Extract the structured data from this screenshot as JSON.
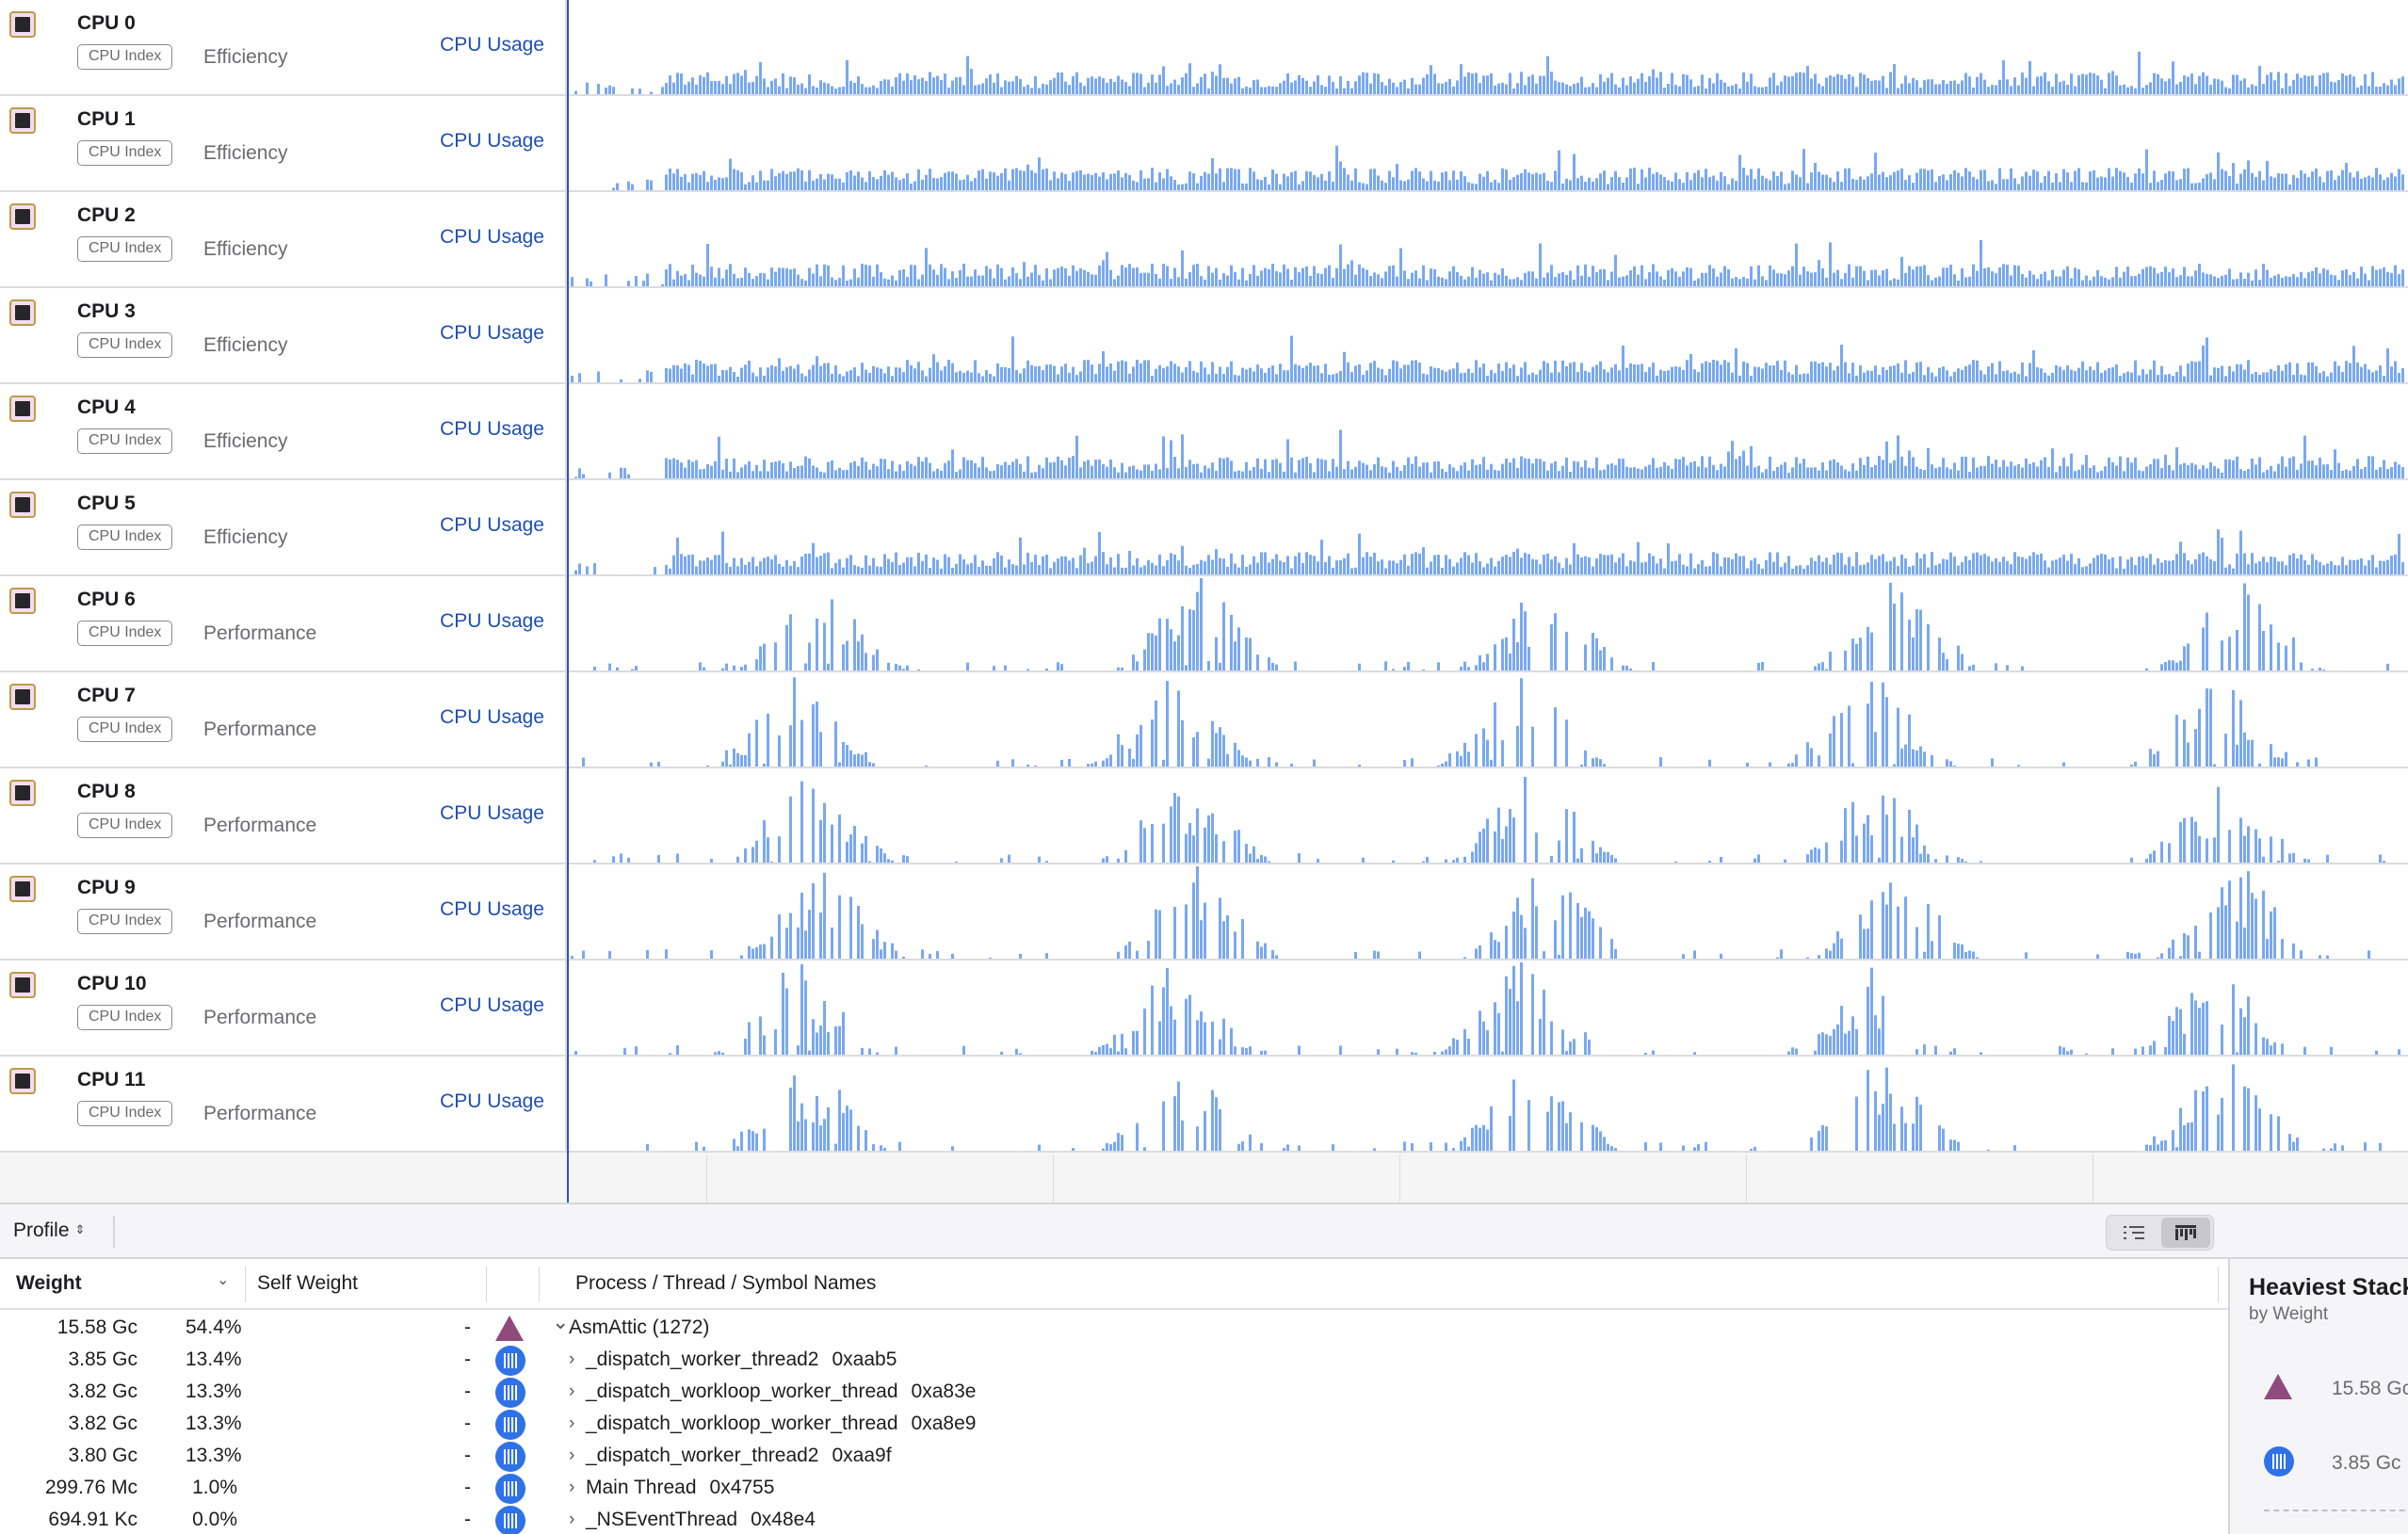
{
  "tracks": [
    {
      "name": "CPU 0",
      "badge": "CPU Index",
      "kind": "Efficiency",
      "metric": "CPU Usage",
      "core": "efficiency"
    },
    {
      "name": "CPU 1",
      "badge": "CPU Index",
      "kind": "Efficiency",
      "metric": "CPU Usage",
      "core": "efficiency"
    },
    {
      "name": "CPU 2",
      "badge": "CPU Index",
      "kind": "Efficiency",
      "metric": "CPU Usage",
      "core": "efficiency"
    },
    {
      "name": "CPU 3",
      "badge": "CPU Index",
      "kind": "Efficiency",
      "metric": "CPU Usage",
      "core": "efficiency"
    },
    {
      "name": "CPU 4",
      "badge": "CPU Index",
      "kind": "Efficiency",
      "metric": "CPU Usage",
      "core": "efficiency"
    },
    {
      "name": "CPU 5",
      "badge": "CPU Index",
      "kind": "Efficiency",
      "metric": "CPU Usage",
      "core": "efficiency"
    },
    {
      "name": "CPU 6",
      "badge": "CPU Index",
      "kind": "Performance",
      "metric": "CPU Usage",
      "core": "performance"
    },
    {
      "name": "CPU 7",
      "badge": "CPU Index",
      "kind": "Performance",
      "metric": "CPU Usage",
      "core": "performance"
    },
    {
      "name": "CPU 8",
      "badge": "CPU Index",
      "kind": "Performance",
      "metric": "CPU Usage",
      "core": "performance"
    },
    {
      "name": "CPU 9",
      "badge": "CPU Index",
      "kind": "Performance",
      "metric": "CPU Usage",
      "core": "performance"
    },
    {
      "name": "CPU 10",
      "badge": "CPU Index",
      "kind": "Performance",
      "metric": "CPU Usage",
      "core": "performance"
    },
    {
      "name": "CPU 11",
      "badge": "CPU Index",
      "kind": "Performance",
      "metric": "CPU Usage",
      "core": "performance"
    }
  ],
  "colors": {
    "bar": "#79a8f2",
    "playhead": "#2a55b3",
    "link": "#1f4fb4",
    "thread_icon": "#2f72e8",
    "process_icon": "#8f4a7e"
  },
  "profile_bar": {
    "selector_label": "Profile",
    "view_modes": [
      "call-tree-list-icon",
      "flame-graph-icon"
    ],
    "active_view": "flame-graph-icon"
  },
  "calltree": {
    "columns": {
      "weight": "Weight",
      "self_weight": "Self Weight",
      "names": "Process / Thread / Symbol Names"
    },
    "rows": [
      {
        "weight": "15.58 Gc",
        "percent": "54.4%",
        "self": "-",
        "icon": "process-icon",
        "name": "AsmAttic (1272)",
        "addr": "",
        "level": 0,
        "expanded": true
      },
      {
        "weight": "3.85 Gc",
        "percent": "13.4%",
        "self": "-",
        "icon": "thread-icon",
        "name": "_dispatch_worker_thread2",
        "addr": "0xaab5",
        "level": 1,
        "expanded": false
      },
      {
        "weight": "3.82 Gc",
        "percent": "13.3%",
        "self": "-",
        "icon": "thread-icon",
        "name": "_dispatch_workloop_worker_thread",
        "addr": "0xa83e",
        "level": 1,
        "expanded": false
      },
      {
        "weight": "3.82 Gc",
        "percent": "13.3%",
        "self": "-",
        "icon": "thread-icon",
        "name": "_dispatch_workloop_worker_thread",
        "addr": "0xa8e9",
        "level": 1,
        "expanded": false
      },
      {
        "weight": "3.80 Gc",
        "percent": "13.3%",
        "self": "-",
        "icon": "thread-icon",
        "name": "_dispatch_worker_thread2",
        "addr": "0xaa9f",
        "level": 1,
        "expanded": false
      },
      {
        "weight": "299.76 Mc",
        "percent": "1.0%",
        "self": "-",
        "icon": "thread-icon",
        "name": "Main Thread",
        "addr": "0x4755",
        "level": 1,
        "expanded": false
      },
      {
        "weight": "694.91 Kc",
        "percent": "0.0%",
        "self": "-",
        "icon": "thread-icon",
        "name": "_NSEventThread",
        "addr": "0x48e4",
        "level": 1,
        "expanded": false
      }
    ]
  },
  "heaviest_stack": {
    "title": "Heaviest Stack",
    "subtitle": "by Weight",
    "rows": [
      {
        "icon": "process-icon",
        "value": "15.58 Gc"
      },
      {
        "icon": "thread-icon",
        "value": "3.85 Gc"
      }
    ]
  }
}
